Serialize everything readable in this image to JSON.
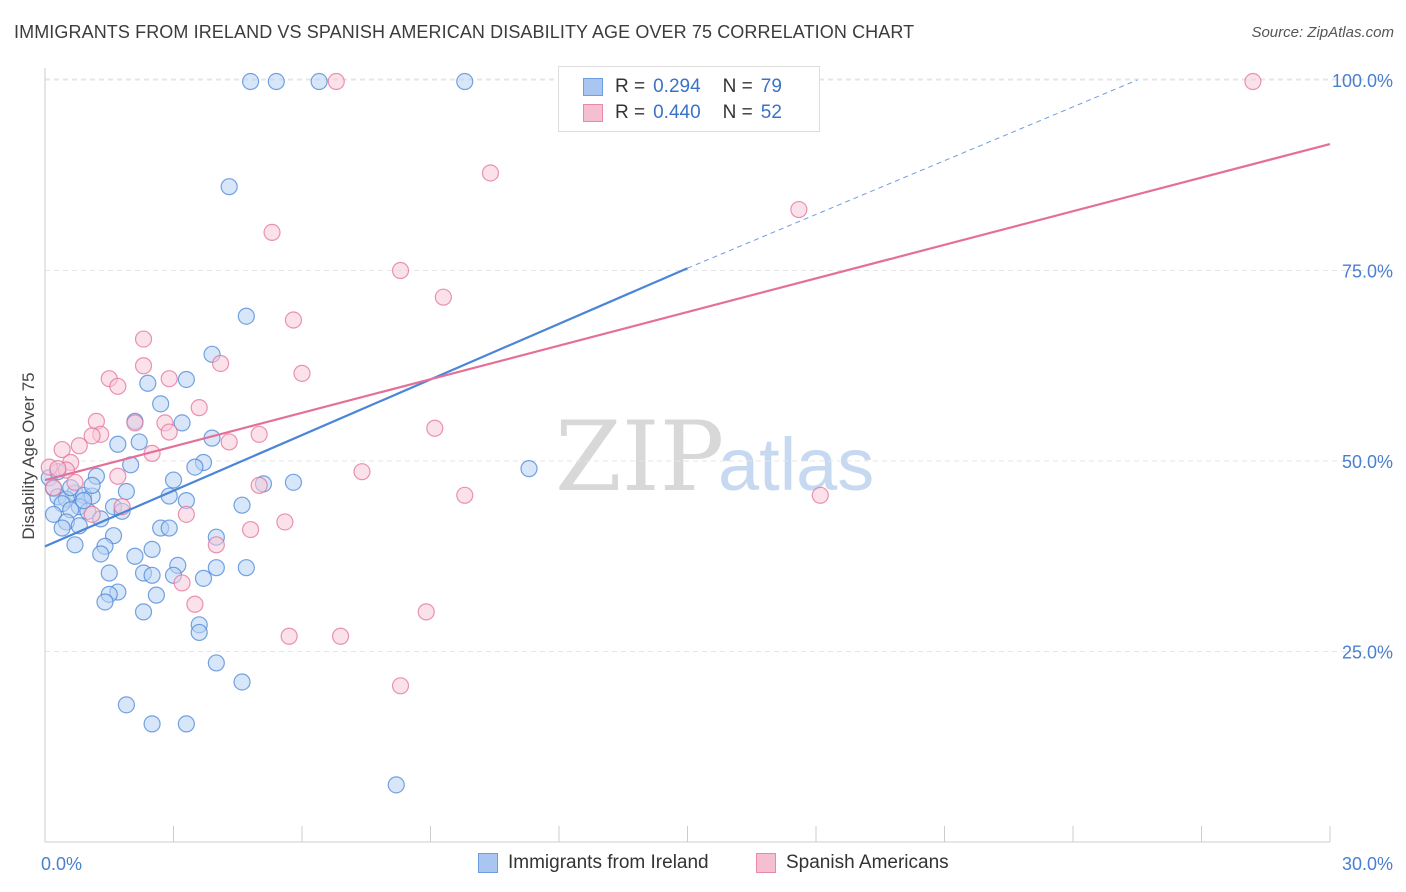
{
  "title": "IMMIGRANTS FROM IRELAND VS SPANISH AMERICAN DISABILITY AGE OVER 75 CORRELATION CHART",
  "source": "Source: ZipAtlas.com",
  "watermark": {
    "zip": "ZIP",
    "atlas": "atlas"
  },
  "legend": {
    "rows": [
      {
        "r_label": "R =",
        "r_value": "0.294",
        "n_label": "N =",
        "n_value": "79",
        "color": "#a9c6f2",
        "border": "#6f9ee0"
      },
      {
        "r_label": "R =",
        "r_value": "0.440",
        "n_label": "N =",
        "n_value": "52",
        "color": "#f6bfd0",
        "border": "#e88aa9"
      }
    ]
  },
  "bottom_legend": [
    {
      "label": "Immigrants from Ireland",
      "color": "#a9c6f2",
      "border": "#6f9ee0"
    },
    {
      "label": "Spanish Americans",
      "color": "#f6bfd0",
      "border": "#e88aa9"
    }
  ],
  "chart_data": {
    "type": "scatter",
    "title": "IMMIGRANTS FROM IRELAND VS SPANISH AMERICAN DISABILITY AGE OVER 75 CORRELATION CHART",
    "xlabel": "",
    "ylabel": "Disability Age Over 75",
    "xlim": [
      0,
      30
    ],
    "ylim": [
      0,
      105
    ],
    "x_tick_labels": [
      "0.0%",
      "30.0%"
    ],
    "y_ticks": [
      25,
      50,
      75,
      100
    ],
    "y_tick_labels": [
      "25.0%",
      "50.0%",
      "75.0%",
      "100.0%"
    ],
    "grid": true,
    "colors": {
      "blue": "#4a85d6",
      "pink": "#e4709a",
      "blue_fill": "#b8d1f4",
      "pink_fill": "#f8c9d8"
    },
    "series": [
      {
        "name": "Immigrants from Ireland",
        "color": "#4a85d6",
        "trend": {
          "x": [
            0,
            15.0
          ],
          "y": [
            38.8,
            75.3
          ],
          "dashed_to": [
            25.5,
            100.0
          ]
        },
        "points": [
          [
            4.8,
            99.8
          ],
          [
            5.4,
            99.8
          ],
          [
            6.4,
            99.8
          ],
          [
            9.8,
            99.8
          ],
          [
            4.3,
            86.0
          ],
          [
            4.7,
            69.0
          ],
          [
            3.9,
            64.0
          ],
          [
            3.3,
            60.7
          ],
          [
            2.4,
            60.2
          ],
          [
            2.7,
            57.5
          ],
          [
            3.2,
            55.0
          ],
          [
            2.1,
            55.2
          ],
          [
            2.2,
            52.5
          ],
          [
            1.7,
            52.2
          ],
          [
            3.7,
            49.8
          ],
          [
            3.5,
            49.2
          ],
          [
            11.3,
            49.0
          ],
          [
            3.0,
            47.5
          ],
          [
            5.1,
            47.0
          ],
          [
            5.8,
            47.2
          ],
          [
            1.9,
            46.0
          ],
          [
            1.2,
            48.0
          ],
          [
            0.1,
            47.8
          ],
          [
            0.2,
            46.4
          ],
          [
            0.7,
            45.8
          ],
          [
            0.9,
            45.5
          ],
          [
            1.1,
            45.4
          ],
          [
            0.3,
            45.3
          ],
          [
            0.5,
            45.0
          ],
          [
            0.4,
            44.4
          ],
          [
            0.8,
            44.0
          ],
          [
            0.6,
            43.6
          ],
          [
            1.6,
            44.0
          ],
          [
            3.3,
            44.8
          ],
          [
            4.6,
            44.2
          ],
          [
            0.2,
            43.0
          ],
          [
            1.0,
            43.4
          ],
          [
            1.3,
            42.4
          ],
          [
            0.5,
            42.0
          ],
          [
            0.8,
            41.5
          ],
          [
            0.4,
            41.2
          ],
          [
            2.7,
            41.2
          ],
          [
            2.9,
            41.2
          ],
          [
            4.0,
            40.0
          ],
          [
            0.7,
            39.0
          ],
          [
            1.6,
            40.2
          ],
          [
            1.4,
            38.8
          ],
          [
            2.5,
            38.4
          ],
          [
            1.3,
            37.8
          ],
          [
            2.1,
            37.5
          ],
          [
            3.1,
            36.3
          ],
          [
            4.0,
            36.0
          ],
          [
            4.7,
            36.0
          ],
          [
            1.5,
            35.3
          ],
          [
            2.3,
            35.3
          ],
          [
            2.5,
            35.0
          ],
          [
            3.0,
            35.0
          ],
          [
            3.7,
            34.6
          ],
          [
            1.7,
            32.8
          ],
          [
            1.5,
            32.5
          ],
          [
            2.6,
            32.4
          ],
          [
            1.4,
            31.5
          ],
          [
            2.3,
            30.2
          ],
          [
            3.6,
            28.5
          ],
          [
            3.6,
            27.5
          ],
          [
            4.0,
            23.5
          ],
          [
            4.6,
            21.0
          ],
          [
            1.9,
            18.0
          ],
          [
            2.5,
            15.5
          ],
          [
            3.3,
            15.5
          ],
          [
            8.2,
            7.5
          ],
          [
            0.3,
            48.6
          ],
          [
            0.6,
            46.5
          ],
          [
            1.1,
            46.8
          ],
          [
            2.0,
            49.5
          ],
          [
            3.9,
            53.0
          ],
          [
            2.9,
            45.4
          ],
          [
            0.9,
            44.8
          ],
          [
            1.8,
            43.4
          ]
        ]
      },
      {
        "name": "Spanish Americans",
        "color": "#e4709a",
        "trend": {
          "x": [
            0,
            30
          ],
          "y": [
            47.5,
            91.6
          ]
        },
        "points": [
          [
            6.8,
            99.8
          ],
          [
            13.2,
            99.8
          ],
          [
            28.2,
            99.8
          ],
          [
            10.4,
            87.8
          ],
          [
            17.6,
            83.0
          ],
          [
            5.3,
            80.0
          ],
          [
            8.3,
            75.0
          ],
          [
            9.3,
            71.5
          ],
          [
            5.8,
            68.5
          ],
          [
            2.3,
            66.0
          ],
          [
            4.1,
            62.8
          ],
          [
            2.3,
            62.5
          ],
          [
            6.0,
            61.5
          ],
          [
            2.9,
            60.8
          ],
          [
            1.5,
            60.8
          ],
          [
            1.7,
            59.8
          ],
          [
            3.6,
            57.0
          ],
          [
            2.1,
            55.0
          ],
          [
            2.8,
            55.0
          ],
          [
            1.2,
            55.2
          ],
          [
            1.3,
            53.5
          ],
          [
            1.1,
            53.3
          ],
          [
            5.0,
            53.5
          ],
          [
            2.9,
            53.8
          ],
          [
            4.3,
            52.5
          ],
          [
            0.8,
            52.0
          ],
          [
            0.4,
            51.5
          ],
          [
            2.5,
            51.0
          ],
          [
            0.6,
            49.8
          ],
          [
            0.1,
            49.2
          ],
          [
            0.5,
            48.8
          ],
          [
            1.7,
            48.0
          ],
          [
            7.4,
            48.6
          ],
          [
            0.7,
            47.2
          ],
          [
            0.2,
            46.5
          ],
          [
            5.0,
            46.8
          ],
          [
            9.8,
            45.5
          ],
          [
            18.1,
            45.5
          ],
          [
            1.8,
            44.0
          ],
          [
            3.3,
            43.0
          ],
          [
            5.6,
            42.0
          ],
          [
            4.8,
            41.0
          ],
          [
            4.0,
            39.0
          ],
          [
            3.2,
            34.0
          ],
          [
            3.5,
            31.2
          ],
          [
            8.9,
            30.2
          ],
          [
            5.7,
            27.0
          ],
          [
            6.9,
            27.0
          ],
          [
            8.3,
            20.5
          ],
          [
            1.1,
            43.0
          ],
          [
            0.3,
            49.0
          ],
          [
            9.1,
            54.3
          ]
        ]
      }
    ]
  }
}
